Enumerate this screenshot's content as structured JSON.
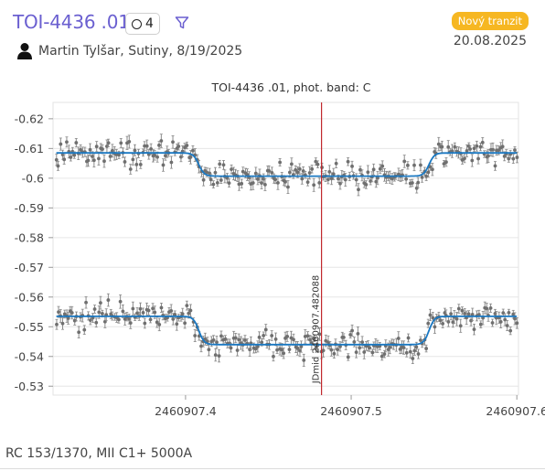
{
  "header": {
    "title": "TOI-4436 .01",
    "count": "4",
    "observer": "Martin Tylšar, Sutiny, 8/19/2025",
    "status": "Nový tranzit",
    "date": "20.08.2025"
  },
  "chart_data": {
    "type": "scatter",
    "title": "TOI-4436 .01, phot. band: C",
    "x_ticks": [
      "2460907.4",
      "2460907.5",
      "2460907.6"
    ],
    "y_ticks": [
      "-0.62",
      "-0.61",
      "-0.6",
      "-0.59",
      "-0.58",
      "-0.57",
      "-0.56",
      "-0.55",
      "-0.54",
      "-0.53"
    ],
    "xlim": [
      2460907.32,
      2460907.601
    ],
    "ylim": [
      -0.6255,
      -0.527
    ],
    "y_inverted": true,
    "grid": "horizontal",
    "colors": {
      "points": "#8a8a8a",
      "model": "#1a78c2",
      "mid_line": "#c0282d"
    },
    "midline": {
      "x": 2460907.482088,
      "label": "JDmid 2460907.482088"
    },
    "series": [
      {
        "kind": "points-with-errorbars",
        "baseline": -0.6085,
        "depth": 0.0078,
        "ingress": 2460907.408,
        "egress": 2460907.547,
        "scatter": 0.0035,
        "x_start": 2460907.322,
        "x_end": 2460907.6,
        "n": 230
      },
      {
        "kind": "points-with-errorbars",
        "baseline": -0.5535,
        "depth": 0.0095,
        "ingress": 2460907.408,
        "egress": 2460907.547,
        "scatter": 0.0035,
        "x_start": 2460907.322,
        "x_end": 2460907.6,
        "n": 230
      }
    ]
  },
  "footer": {
    "text": "RC 153/1370, MII C1+ 5000A"
  }
}
